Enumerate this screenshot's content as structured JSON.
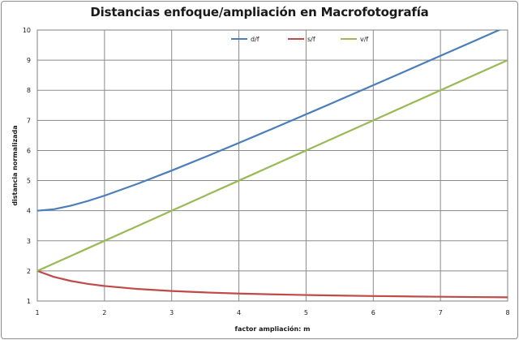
{
  "chart_data": {
    "type": "line",
    "title": "Distancias enfoque/ampliación en Macrofotografía",
    "xlabel": "factor ampliación:  m",
    "ylabel": "distancia normalizada",
    "xlim": [
      1,
      8
    ],
    "ylim": [
      1,
      10
    ],
    "x_ticks": [
      "1",
      "2",
      "3",
      "4",
      "5",
      "6",
      "7",
      "8"
    ],
    "y_ticks": [
      "1",
      "2",
      "3",
      "4",
      "5",
      "6",
      "7",
      "8",
      "9",
      "10"
    ],
    "grid": true,
    "legend_position": "top-center",
    "x": [
      1,
      1.25,
      1.5,
      1.75,
      2,
      2.5,
      3,
      3.5,
      4,
      4.5,
      5,
      5.5,
      6,
      6.5,
      7,
      7.5,
      8
    ],
    "series": [
      {
        "name": "d/f",
        "color": "#4a7ebb",
        "values": [
          4,
          4.05,
          4.167,
          4.321,
          4.5,
          4.9,
          5.333,
          5.786,
          6.25,
          6.722,
          7.2,
          7.682,
          8.167,
          8.654,
          9.143,
          9.633,
          10.125
        ]
      },
      {
        "name": "s/f",
        "color": "#be4b48",
        "values": [
          2,
          1.8,
          1.667,
          1.571,
          1.5,
          1.4,
          1.333,
          1.286,
          1.25,
          1.222,
          1.2,
          1.182,
          1.167,
          1.154,
          1.143,
          1.133,
          1.125
        ]
      },
      {
        "name": "v/f",
        "color": "#98b954",
        "values": [
          2,
          2.25,
          2.5,
          2.75,
          3,
          3.5,
          4,
          4.5,
          5,
          5.5,
          6,
          6.5,
          7,
          7.5,
          8,
          8.5,
          9
        ]
      }
    ]
  }
}
